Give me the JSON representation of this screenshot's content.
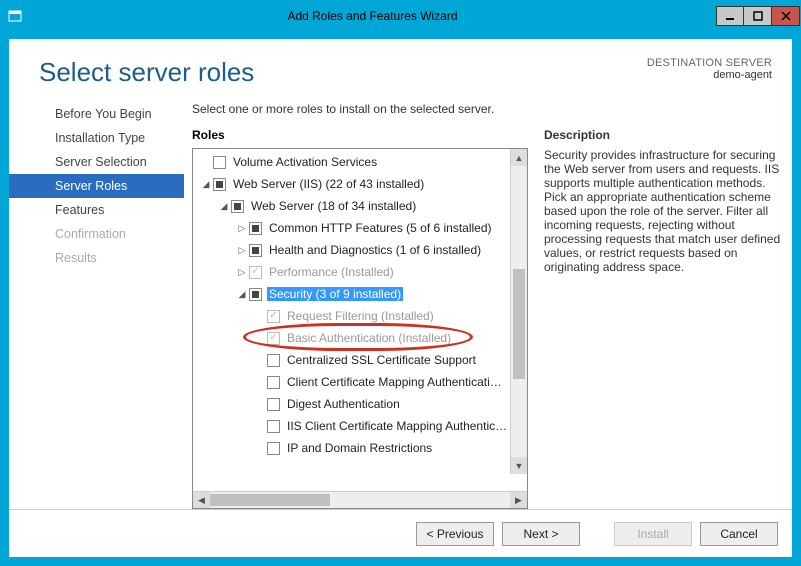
{
  "window": {
    "title": "Add Roles and Features Wizard"
  },
  "header": {
    "title": "Select server roles",
    "destination_label": "DESTINATION SERVER",
    "destination_value": "demo-agent"
  },
  "nav": {
    "items": [
      {
        "label": "Before You Begin",
        "state": "normal"
      },
      {
        "label": "Installation Type",
        "state": "normal"
      },
      {
        "label": "Server Selection",
        "state": "normal"
      },
      {
        "label": "Server Roles",
        "state": "active"
      },
      {
        "label": "Features",
        "state": "normal"
      },
      {
        "label": "Confirmation",
        "state": "disabled"
      },
      {
        "label": "Results",
        "state": "disabled"
      }
    ]
  },
  "instruction": "Select one or more roles to install on the selected server.",
  "roles_title": "Roles",
  "description_title": "Description",
  "description_body": "Security provides infrastructure for securing the Web server from users and requests. IIS supports multiple authentication methods. Pick an appropriate authentication scheme based upon the role of the server. Filter all incoming requests, rejecting without processing requests that match user defined values, or restrict requests based on originating address space.",
  "tree": [
    {
      "depth": 0,
      "expander": "",
      "check": "empty",
      "label": "Volume Activation Services"
    },
    {
      "depth": 0,
      "expander": "down",
      "check": "partial",
      "label": "Web Server (IIS) (22 of 43 installed)"
    },
    {
      "depth": 1,
      "expander": "down",
      "check": "partial",
      "label": "Web Server (18 of 34 installed)"
    },
    {
      "depth": 2,
      "expander": "right",
      "check": "partial",
      "label": "Common HTTP Features (5 of 6 installed)"
    },
    {
      "depth": 2,
      "expander": "right",
      "check": "partial",
      "label": "Health and Diagnostics (1 of 6 installed)"
    },
    {
      "depth": 2,
      "expander": "right",
      "check": "checked-disabled",
      "label": "Performance (Installed)",
      "disabled": true
    },
    {
      "depth": 2,
      "expander": "down",
      "check": "partial",
      "label": "Security (3 of 9 installed)",
      "selected": true
    },
    {
      "depth": 3,
      "expander": "",
      "check": "checked-disabled",
      "label": "Request Filtering (Installed)",
      "disabled": true
    },
    {
      "depth": 3,
      "expander": "",
      "check": "checked-disabled",
      "label": "Basic Authentication (Installed)",
      "disabled": true,
      "annot": true
    },
    {
      "depth": 3,
      "expander": "",
      "check": "empty",
      "label": "Centralized SSL Certificate Support"
    },
    {
      "depth": 3,
      "expander": "",
      "check": "empty",
      "label": "Client Certificate Mapping Authenticati…"
    },
    {
      "depth": 3,
      "expander": "",
      "check": "empty",
      "label": "Digest Authentication"
    },
    {
      "depth": 3,
      "expander": "",
      "check": "empty",
      "label": "IIS Client Certificate Mapping Authentic…"
    },
    {
      "depth": 3,
      "expander": "",
      "check": "empty",
      "label": "IP and Domain Restrictions"
    }
  ],
  "buttons": {
    "previous": "< Previous",
    "next": "Next >",
    "install": "Install",
    "cancel": "Cancel"
  },
  "colors": {
    "accent": "#00a6d6",
    "nav_active": "#2a6dc0",
    "selection": "#3399ff",
    "heading": "#1e5c8d",
    "annotation": "#d03020"
  }
}
